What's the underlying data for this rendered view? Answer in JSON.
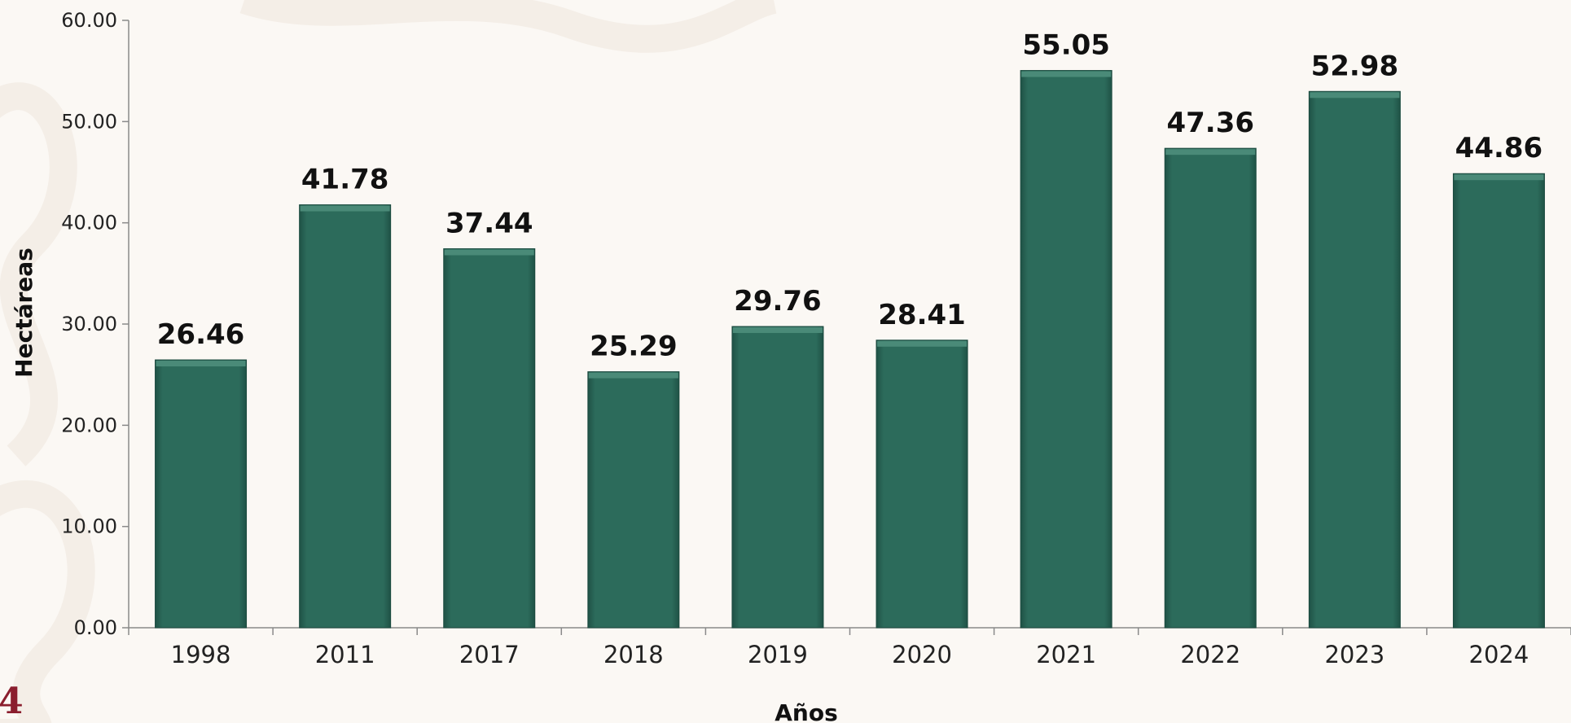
{
  "chart_data": {
    "type": "bar",
    "categories": [
      "1998",
      "2011",
      "2017",
      "2018",
      "2019",
      "2020",
      "2021",
      "2022",
      "2023",
      "2024"
    ],
    "values": [
      26.46,
      41.78,
      37.44,
      25.29,
      29.76,
      28.41,
      55.05,
      47.36,
      52.98,
      44.86
    ],
    "value_labels": [
      "26.46",
      "41.78",
      "37.44",
      "25.29",
      "29.76",
      "28.41",
      "55.05",
      "47.36",
      "52.98",
      "44.86"
    ],
    "title": "",
    "xlabel": "Años",
    "ylabel": "Hectáreas",
    "ylim": [
      0,
      60
    ],
    "yticks": [
      "0.00",
      "10.00",
      "20.00",
      "30.00",
      "40.00",
      "50.00",
      "60.00"
    ],
    "grid": false,
    "legend": "none",
    "bar_color": "#2a6657",
    "bar_top_color": "#4a8a78"
  },
  "corner_mark": "4"
}
